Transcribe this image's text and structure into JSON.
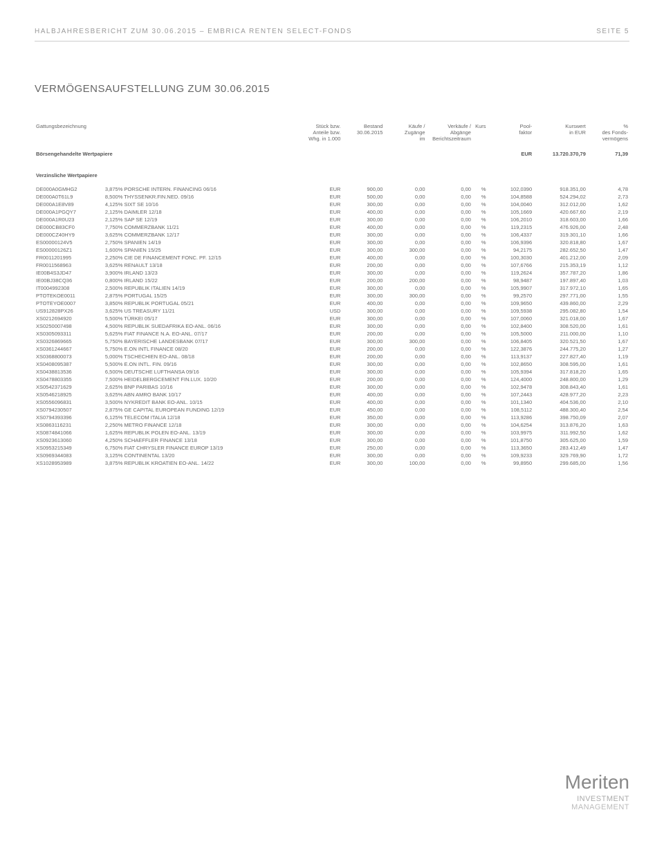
{
  "header": {
    "left": "HALBJAHRESBERICHT ZUM 30.06.2015 – EMBRICA RENTEN SELECT-FONDS",
    "right": "SEITE 5"
  },
  "section_title": "VERMÖGENSAUFSTELLUNG ZUM 30.06.2015",
  "columns": {
    "h1_l1": "Gattungsbezeichnung",
    "h1_l2": "",
    "h1_l3": "",
    "h2_l1": "Stück bzw.",
    "h2_l2": "Anteile bzw.",
    "h2_l3": "Whg. in 1.000",
    "h3_l1": "Bestand",
    "h3_l2": "30.06.2015",
    "h3_l3": "",
    "h4_l1": "Käufe /",
    "h4_l2": "Zugänge",
    "h4_l3": "im",
    "h5_l1": "Verkäufe /",
    "h5_l2": "Abgänge",
    "h5_l3": "Berichtszeitraum",
    "h6_l1": "Kurs",
    "h6_l2": "",
    "h6_l3": "",
    "h7_l1": "Pool-",
    "h7_l2": "faktor",
    "h7_l3": "",
    "h8_l1": "Kurswert",
    "h8_l2": "in EUR",
    "h8_l3": "",
    "h9_l1": "%",
    "h9_l2": "des Fonds-",
    "h9_l3": "vermögens"
  },
  "section1": {
    "label": "Börsengehandelte Wertpapiere",
    "whg": "EUR",
    "kurswert": "13.720.370,79",
    "pct": "71,39"
  },
  "subsection1": {
    "label": "Verzinsliche Wertpapiere"
  },
  "rows": [
    {
      "isin": "DE000A0GMHG2",
      "name": "3,875% PORSCHE INTERN. FINANCING 06/16",
      "whg": "EUR",
      "bestand": "900,00",
      "kauf": "0,00",
      "verkauf": "0,00",
      "kurs": "%",
      "pool": "102,0390",
      "kurswert": "918.351,00",
      "pct": "4,78"
    },
    {
      "isin": "DE000A0T61L9",
      "name": "8,500% THYSSENKR.FIN.NED. 09/16",
      "whg": "EUR",
      "bestand": "500,00",
      "kauf": "0,00",
      "verkauf": "0,00",
      "kurs": "%",
      "pool": "104,8588",
      "kurswert": "524.294,02",
      "pct": "2,73"
    },
    {
      "isin": "DE000A1E8V89",
      "name": "4,125% SIXT SE 10/16",
      "whg": "EUR",
      "bestand": "300,00",
      "kauf": "0,00",
      "verkauf": "0,00",
      "kurs": "%",
      "pool": "104,0040",
      "kurswert": "312.012,00",
      "pct": "1,62"
    },
    {
      "isin": "DE000A1PGQY7",
      "name": "2,125% DAIMLER 12/18",
      "whg": "EUR",
      "bestand": "400,00",
      "kauf": "0,00",
      "verkauf": "0,00",
      "kurs": "%",
      "pool": "105,1669",
      "kurswert": "420.667,60",
      "pct": "2,19"
    },
    {
      "isin": "DE000A1R0U23",
      "name": "2,125% SAP SE 12/19",
      "whg": "EUR",
      "bestand": "300,00",
      "kauf": "0,00",
      "verkauf": "0,00",
      "kurs": "%",
      "pool": "106,2010",
      "kurswert": "318.603,00",
      "pct": "1,66"
    },
    {
      "isin": "DE000CB83CF0",
      "name": "7,750% COMMERZBANK 11/21",
      "whg": "EUR",
      "bestand": "400,00",
      "kauf": "0,00",
      "verkauf": "0,00",
      "kurs": "%",
      "pool": "119,2315",
      "kurswert": "476.926,00",
      "pct": "2,48"
    },
    {
      "isin": "DE000CZ40HY9",
      "name": "3,625% COMMERZBANK 12/17",
      "whg": "EUR",
      "bestand": "300,00",
      "kauf": "0,00",
      "verkauf": "0,00",
      "kurs": "%",
      "pool": "106,4337",
      "kurswert": "319.301,10",
      "pct": "1,66"
    },
    {
      "isin": "ES00000124V5",
      "name": "2,750% SPANIEN 14/19",
      "whg": "EUR",
      "bestand": "300,00",
      "kauf": "0,00",
      "verkauf": "0,00",
      "kurs": "%",
      "pool": "106,9396",
      "kurswert": "320.818,80",
      "pct": "1,67"
    },
    {
      "isin": "ES00000126Z1",
      "name": "1,600% SPANIEN 15/25",
      "whg": "EUR",
      "bestand": "300,00",
      "kauf": "300,00",
      "verkauf": "0,00",
      "kurs": "%",
      "pool": "94,2175",
      "kurswert": "282.652,50",
      "pct": "1,47"
    },
    {
      "isin": "FR0011201995",
      "name": "2,250% CIE DE FINANCEMENT FONC. PF. 12/15",
      "whg": "EUR",
      "bestand": "400,00",
      "kauf": "0,00",
      "verkauf": "0,00",
      "kurs": "%",
      "pool": "100,3030",
      "kurswert": "401.212,00",
      "pct": "2,09"
    },
    {
      "isin": "FR0011568963",
      "name": "3,625% RENAULT 13/18",
      "whg": "EUR",
      "bestand": "200,00",
      "kauf": "0,00",
      "verkauf": "0,00",
      "kurs": "%",
      "pool": "107,6766",
      "kurswert": "215.353,19",
      "pct": "1,12"
    },
    {
      "isin": "IE00B4S3JD47",
      "name": "3,900% IRLAND 13/23",
      "whg": "EUR",
      "bestand": "300,00",
      "kauf": "0,00",
      "verkauf": "0,00",
      "kurs": "%",
      "pool": "119,2624",
      "kurswert": "357.787,20",
      "pct": "1,86"
    },
    {
      "isin": "IE00BJ38CQ36",
      "name": "0,800% IRLAND 15/22",
      "whg": "EUR",
      "bestand": "200,00",
      "kauf": "200,00",
      "verkauf": "0,00",
      "kurs": "%",
      "pool": "98,9487",
      "kurswert": "197.897,40",
      "pct": "1,03"
    },
    {
      "isin": "IT0004992308",
      "name": "2,500% REPUBLIK ITALIEN 14/19",
      "whg": "EUR",
      "bestand": "300,00",
      "kauf": "0,00",
      "verkauf": "0,00",
      "kurs": "%",
      "pool": "105,9907",
      "kurswert": "317.972,10",
      "pct": "1,65"
    },
    {
      "isin": "PTOTEKOE0011",
      "name": "2,875% PORTUGAL 15/25",
      "whg": "EUR",
      "bestand": "300,00",
      "kauf": "300,00",
      "verkauf": "0,00",
      "kurs": "%",
      "pool": "99,2570",
      "kurswert": "297.771,00",
      "pct": "1,55"
    },
    {
      "isin": "PTOTEYOE0007",
      "name": "3,850% REPUBLIK PORTUGAL 05/21",
      "whg": "EUR",
      "bestand": "400,00",
      "kauf": "0,00",
      "verkauf": "0,00",
      "kurs": "%",
      "pool": "109,9650",
      "kurswert": "439.860,00",
      "pct": "2,29"
    },
    {
      "isin": "US912828PX26",
      "name": "3,625% US TREASURY 11/21",
      "whg": "USD",
      "bestand": "300,00",
      "kauf": "0,00",
      "verkauf": "0,00",
      "kurs": "%",
      "pool": "109,5938",
      "kurswert": "295.082,80",
      "pct": "1,54"
    },
    {
      "isin": "XS0212694920",
      "name": "5,500% TÜRKEI 05/17",
      "whg": "EUR",
      "bestand": "300,00",
      "kauf": "0,00",
      "verkauf": "0,00",
      "kurs": "%",
      "pool": "107,0060",
      "kurswert": "321.018,00",
      "pct": "1,67"
    },
    {
      "isin": "XS0250007498",
      "name": "4,500% REPUBLIK SUEDAFRIKA EO-ANL. 06/16",
      "whg": "EUR",
      "bestand": "300,00",
      "kauf": "0,00",
      "verkauf": "0,00",
      "kurs": "%",
      "pool": "102,8400",
      "kurswert": "308.520,00",
      "pct": "1,61"
    },
    {
      "isin": "XS0305093311",
      "name": "5,625% FIAT FINANCE N.A. EO-ANL. 07/17",
      "whg": "EUR",
      "bestand": "200,00",
      "kauf": "0,00",
      "verkauf": "0,00",
      "kurs": "%",
      "pool": "105,5000",
      "kurswert": "211.000,00",
      "pct": "1,10"
    },
    {
      "isin": "XS0326869665",
      "name": "5,750% BAYERISCHE LANDESBANK 07/17",
      "whg": "EUR",
      "bestand": "300,00",
      "kauf": "300,00",
      "verkauf": "0,00",
      "kurs": "%",
      "pool": "106,8405",
      "kurswert": "320.521,50",
      "pct": "1,67"
    },
    {
      "isin": "XS0361244667",
      "name": "5,750% E.ON INTL FINANCE 08/20",
      "whg": "EUR",
      "bestand": "200,00",
      "kauf": "0,00",
      "verkauf": "0,00",
      "kurs": "%",
      "pool": "122,3876",
      "kurswert": "244.775,20",
      "pct": "1,27"
    },
    {
      "isin": "XS0368800073",
      "name": "5,000% TSCHECHIEN EO-ANL. 08/18",
      "whg": "EUR",
      "bestand": "200,00",
      "kauf": "0,00",
      "verkauf": "0,00",
      "kurs": "%",
      "pool": "113,9137",
      "kurswert": "227.827,40",
      "pct": "1,19"
    },
    {
      "isin": "XS0408095387",
      "name": "5,500% E.ON INTL. FIN. 09/16",
      "whg": "EUR",
      "bestand": "300,00",
      "kauf": "0,00",
      "verkauf": "0,00",
      "kurs": "%",
      "pool": "102,8650",
      "kurswert": "308.595,00",
      "pct": "1,61"
    },
    {
      "isin": "XS0438813536",
      "name": "6,500% DEUTSCHE LUFTHANSA 09/16",
      "whg": "EUR",
      "bestand": "300,00",
      "kauf": "0,00",
      "verkauf": "0,00",
      "kurs": "%",
      "pool": "105,9394",
      "kurswert": "317.818,20",
      "pct": "1,65"
    },
    {
      "isin": "XS0478803355",
      "name": "7,500% HEIDELBERGCEMENT FIN.LUX. 10/20",
      "whg": "EUR",
      "bestand": "200,00",
      "kauf": "0,00",
      "verkauf": "0,00",
      "kurs": "%",
      "pool": "124,4000",
      "kurswert": "248.800,00",
      "pct": "1,29"
    },
    {
      "isin": "XS0542371629",
      "name": "2,625% BNP PARIBAS 10/16",
      "whg": "EUR",
      "bestand": "300,00",
      "kauf": "0,00",
      "verkauf": "0,00",
      "kurs": "%",
      "pool": "102,9478",
      "kurswert": "308.843,40",
      "pct": "1,61"
    },
    {
      "isin": "XS0546218925",
      "name": "3,625% ABN AMRO BANK 10/17",
      "whg": "EUR",
      "bestand": "400,00",
      "kauf": "0,00",
      "verkauf": "0,00",
      "kurs": "%",
      "pool": "107,2443",
      "kurswert": "428.977,20",
      "pct": "2,23"
    },
    {
      "isin": "XS0556096831",
      "name": "3,500% NYKREDIT BANK EO-ANL. 10/15",
      "whg": "EUR",
      "bestand": "400,00",
      "kauf": "0,00",
      "verkauf": "0,00",
      "kurs": "%",
      "pool": "101,1340",
      "kurswert": "404.536,00",
      "pct": "2,10"
    },
    {
      "isin": "XS0794230507",
      "name": "2,875% GE CAPITAL EUROPEAN FUNDING 12/19",
      "whg": "EUR",
      "bestand": "450,00",
      "kauf": "0,00",
      "verkauf": "0,00",
      "kurs": "%",
      "pool": "108,5112",
      "kurswert": "488.300,40",
      "pct": "2,54"
    },
    {
      "isin": "XS0794393396",
      "name": "6,125% TELECOM ITALIA 12/18",
      "whg": "EUR",
      "bestand": "350,00",
      "kauf": "0,00",
      "verkauf": "0,00",
      "kurs": "%",
      "pool": "113,9286",
      "kurswert": "398.750,09",
      "pct": "2,07"
    },
    {
      "isin": "XS0863116231",
      "name": "2,250% METRO FINANCE 12/18",
      "whg": "EUR",
      "bestand": "300,00",
      "kauf": "0,00",
      "verkauf": "0,00",
      "kurs": "%",
      "pool": "104,6254",
      "kurswert": "313.876,20",
      "pct": "1,63"
    },
    {
      "isin": "XS0874841066",
      "name": "1,625% REPUBLIK POLEN EO-ANL. 13/19",
      "whg": "EUR",
      "bestand": "300,00",
      "kauf": "0,00",
      "verkauf": "0,00",
      "kurs": "%",
      "pool": "103,9975",
      "kurswert": "311.992,50",
      "pct": "1,62"
    },
    {
      "isin": "XS0923613060",
      "name": "4,250% SCHAEFFLER FINANCE 13/18",
      "whg": "EUR",
      "bestand": "300,00",
      "kauf": "0,00",
      "verkauf": "0,00",
      "kurs": "%",
      "pool": "101,8750",
      "kurswert": "305.625,00",
      "pct": "1,59"
    },
    {
      "isin": "XS0953215349",
      "name": "6,750% FIAT CHRYSLER FINANCE EUROP 13/19",
      "whg": "EUR",
      "bestand": "250,00",
      "kauf": "0,00",
      "verkauf": "0,00",
      "kurs": "%",
      "pool": "113,3650",
      "kurswert": "283.412,49",
      "pct": "1,47"
    },
    {
      "isin": "XS0969344083",
      "name": "3,125% CONTINENTAL 13/20",
      "whg": "EUR",
      "bestand": "300,00",
      "kauf": "0,00",
      "verkauf": "0,00",
      "kurs": "%",
      "pool": "109,9233",
      "kurswert": "329.769,90",
      "pct": "1,72"
    },
    {
      "isin": "XS1028953989",
      "name": "3,875% REPUBLIK KROATIEN EO-ANL. 14/22",
      "whg": "EUR",
      "bestand": "300,00",
      "kauf": "100,00",
      "verkauf": "0,00",
      "kurs": "%",
      "pool": "99,8950",
      "kurswert": "299.685,00",
      "pct": "1,56"
    }
  ],
  "logo": {
    "main": "Meriten",
    "sub1": "INVESTMENT",
    "sub2": "MANAGEMENT"
  }
}
